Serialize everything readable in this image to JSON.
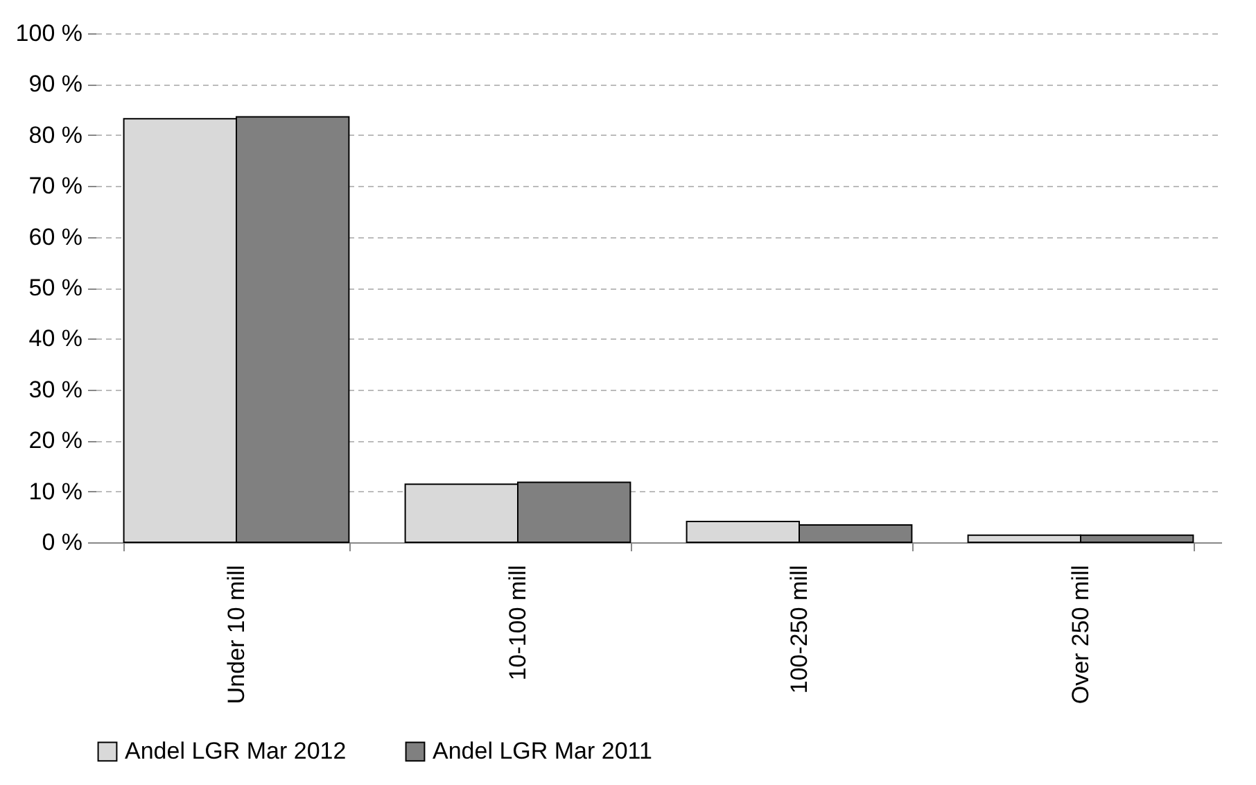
{
  "chart_data": {
    "type": "bar",
    "categories": [
      "Under 10 mill",
      "10-100 mill",
      "100-250 mill",
      "Over 250 mill"
    ],
    "series": [
      {
        "name": "Andel LGR Mar 2012",
        "color": "#d9d9d9",
        "values": [
          83.2,
          11.4,
          4.1,
          1.4
        ]
      },
      {
        "name": "Andel LGR Mar 2011",
        "color": "#808080",
        "values": [
          83.6,
          11.8,
          3.4,
          1.4
        ]
      }
    ],
    "ylim": [
      0,
      100
    ],
    "yticks": [
      {
        "value": 0,
        "label": "0 %"
      },
      {
        "value": 10,
        "label": "10 %"
      },
      {
        "value": 20,
        "label": "20 %"
      },
      {
        "value": 30,
        "label": "30 %"
      },
      {
        "value": 40,
        "label": "40 %"
      },
      {
        "value": 50,
        "label": "50 %"
      },
      {
        "value": 60,
        "label": "60 %"
      },
      {
        "value": 70,
        "label": "70 %"
      },
      {
        "value": 80,
        "label": "80 %"
      },
      {
        "value": 90,
        "label": "90 %"
      },
      {
        "value": 100,
        "label": "100 %"
      }
    ],
    "grid": "y",
    "legend": "bottom"
  }
}
